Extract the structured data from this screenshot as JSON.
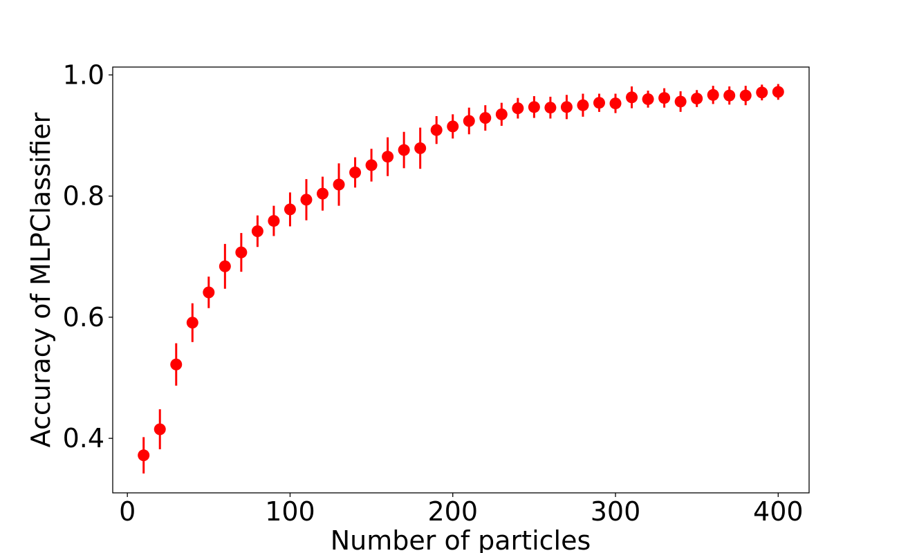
{
  "chart_data": {
    "type": "scatter",
    "title": "",
    "xlabel": "Number of particles",
    "ylabel": "Accuracy of MLPClassifier",
    "xlim": [
      -9,
      419
    ],
    "ylim": [
      0.31,
      1.013
    ],
    "xticks": [
      0,
      100,
      200,
      300,
      400
    ],
    "yticks": [
      0.4,
      0.6,
      0.8,
      1.0
    ],
    "xtick_labels": [
      "0",
      "100",
      "200",
      "300",
      "400"
    ],
    "ytick_labels": [
      "0.4",
      "0.6",
      "0.8",
      "1.0"
    ],
    "grid": false,
    "legend": null,
    "color": "#ff0000",
    "series": [
      {
        "x": [
          10,
          20,
          30,
          40,
          50,
          60,
          70,
          80,
          90,
          100,
          110,
          120,
          130,
          140,
          150,
          160,
          170,
          180,
          190,
          200,
          210,
          220,
          230,
          240,
          250,
          260,
          270,
          280,
          290,
          300,
          310,
          320,
          330,
          340,
          350,
          360,
          370,
          380,
          390,
          400
        ],
        "y": [
          0.372,
          0.415,
          0.522,
          0.591,
          0.641,
          0.684,
          0.707,
          0.742,
          0.759,
          0.778,
          0.794,
          0.804,
          0.819,
          0.839,
          0.851,
          0.865,
          0.876,
          0.879,
          0.909,
          0.915,
          0.924,
          0.929,
          0.935,
          0.945,
          0.947,
          0.946,
          0.947,
          0.95,
          0.954,
          0.953,
          0.963,
          0.96,
          0.962,
          0.956,
          0.961,
          0.967,
          0.966,
          0.966,
          0.971,
          0.972
        ],
        "err": [
          0.03,
          0.033,
          0.035,
          0.032,
          0.026,
          0.037,
          0.032,
          0.026,
          0.025,
          0.028,
          0.034,
          0.028,
          0.035,
          0.025,
          0.027,
          0.032,
          0.03,
          0.034,
          0.023,
          0.02,
          0.022,
          0.021,
          0.019,
          0.017,
          0.018,
          0.018,
          0.02,
          0.019,
          0.015,
          0.016,
          0.018,
          0.014,
          0.016,
          0.017,
          0.014,
          0.015,
          0.015,
          0.016,
          0.013,
          0.013
        ]
      }
    ]
  }
}
